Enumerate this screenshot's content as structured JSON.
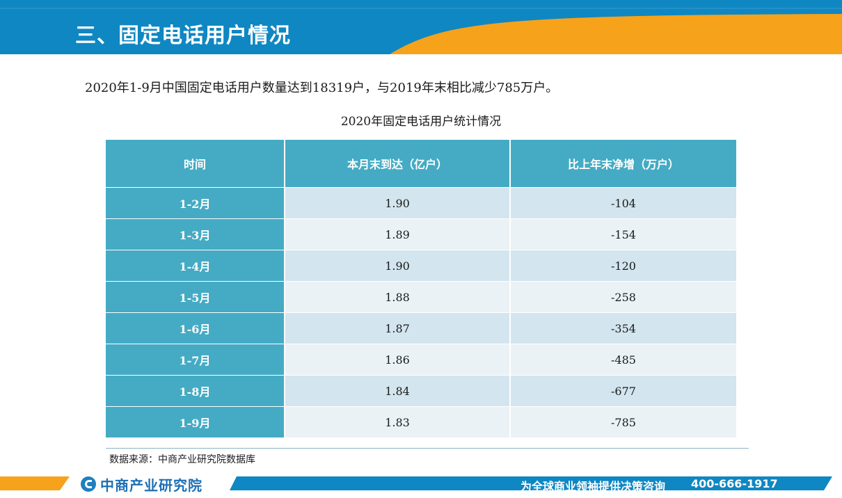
{
  "header": {
    "title": "三、固定电话用户情况",
    "colors": {
      "blue": "#0f87c2",
      "orange": "#f7a21b"
    }
  },
  "summary": "2020年1-9月中国固定电话用户数量达到18319户，与2019年末相比减少785万户。",
  "table": {
    "title": "2020年固定电话用户统计情况",
    "columns": [
      "时间",
      "本月末到达（亿户）",
      "比上年末净增（万户）"
    ],
    "rows": [
      {
        "time": "1-2月",
        "arrival": "1.90",
        "increase": "-104"
      },
      {
        "time": "1-3月",
        "arrival": "1.89",
        "increase": "-154"
      },
      {
        "time": "1-4月",
        "arrival": "1.90",
        "increase": "-120"
      },
      {
        "time": "1-5月",
        "arrival": "1.88",
        "increase": "-258"
      },
      {
        "time": "1-6月",
        "arrival": "1.87",
        "increase": "-354"
      },
      {
        "time": "1-7月",
        "arrival": "1.86",
        "increase": "-485"
      },
      {
        "time": "1-8月",
        "arrival": "1.84",
        "increase": "-677"
      },
      {
        "time": "1-9月",
        "arrival": "1.83",
        "increase": "-785"
      }
    ]
  },
  "source": "数据来源：中商产业研究院数据库",
  "footer": {
    "logo_text": "中商产业研究院",
    "slogan": "为全球商业领袖提供决策咨询",
    "phone": "400-666-1917"
  }
}
